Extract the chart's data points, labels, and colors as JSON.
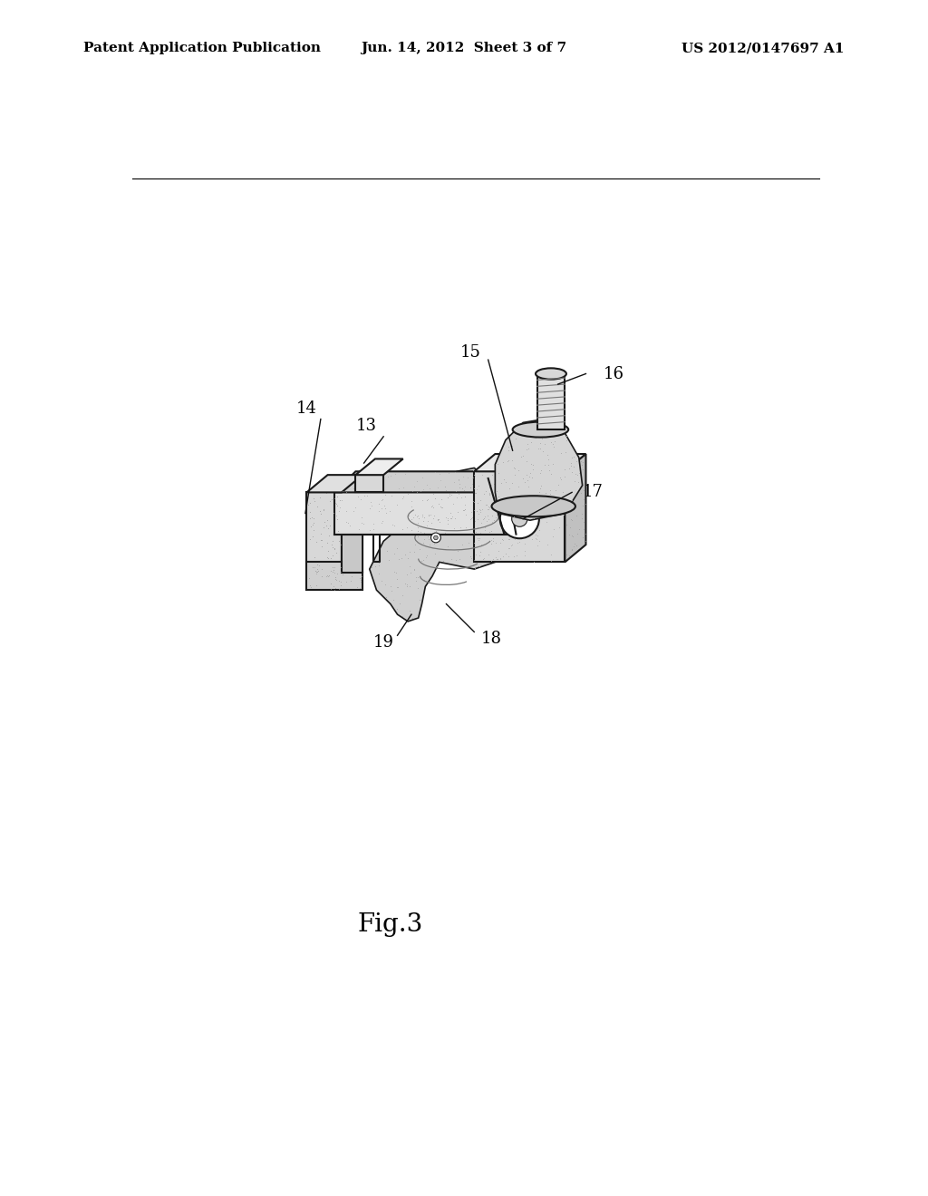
{
  "bg_color": "#ffffff",
  "header_left": "Patent Application Publication",
  "header_center": "Jun. 14, 2012  Sheet 3 of 7",
  "header_right": "US 2012/0147697 A1",
  "fig_label": "Fig.3",
  "label_fontsize": 13,
  "header_fontsize": 11,
  "fig_label_fontsize": 20,
  "outline_color": "#1a1a1a",
  "fill_light": "#e8e8e8",
  "fill_mid": "#cccccc",
  "fill_dark": "#aaaaaa",
  "stipple_color": "#888888"
}
